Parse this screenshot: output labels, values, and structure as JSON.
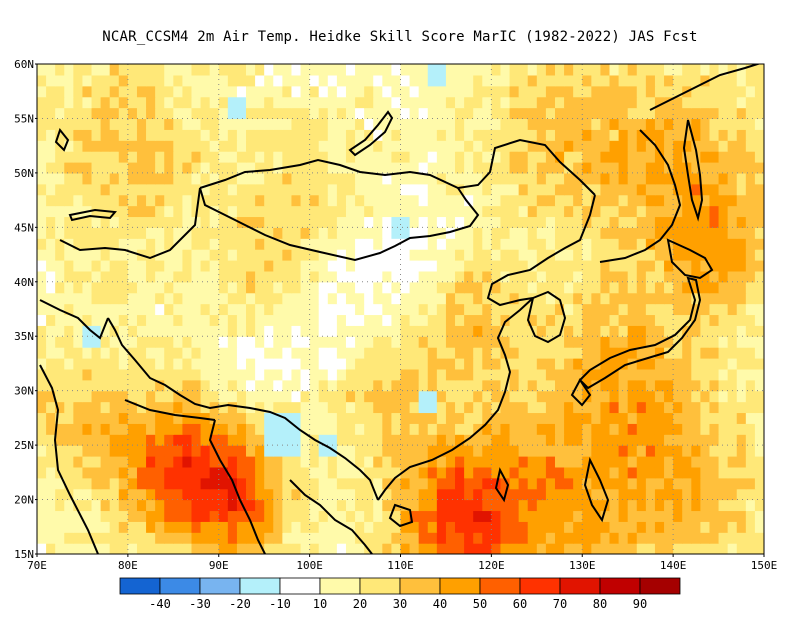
{
  "title": "NCAR_CCSM4  2m Air Temp. Heidke Skill Score MarIC (1982-2022) JAS Fcst",
  "lat_labels": [
    "60N",
    "55N",
    "50N",
    "45N",
    "40N",
    "35N",
    "30N",
    "25N",
    "20N",
    "15N"
  ],
  "lon_labels": [
    "70E",
    "80E",
    "90E",
    "100E",
    "110E",
    "120E",
    "130E",
    "140E",
    "150E"
  ],
  "colorbar": {
    "colors": [
      "#1464d2",
      "#3c8ae6",
      "#78b4f0",
      "#b4f0fa",
      "#ffffff",
      "#fffaaa",
      "#ffe878",
      "#ffc03c",
      "#ffa000",
      "#ff6000",
      "#ff3200",
      "#e11400",
      "#c00000",
      "#a50000"
    ],
    "labels": [
      "-40",
      "-30",
      "-20",
      "-10",
      "10",
      "20",
      "30",
      "40",
      "50",
      "60",
      "70",
      "80",
      "90"
    ]
  },
  "field": {
    "description_levels": [
      "white",
      "light-yellow",
      "yellow",
      "light-orange",
      "orange"
    ],
    "blobs": [
      {
        "lon": 85,
        "lat": 23,
        "r": 7,
        "v": 50
      },
      {
        "lon": 92,
        "lat": 20,
        "r": 6,
        "v": 45
      },
      {
        "lon": 116,
        "lat": 18,
        "r": 7,
        "v": 48
      },
      {
        "lon": 125,
        "lat": 20,
        "r": 10,
        "v": 32
      },
      {
        "lon": 140,
        "lat": 22,
        "r": 10,
        "v": 28
      },
      {
        "lon": 134,
        "lat": 33,
        "r": 8,
        "v": 24
      },
      {
        "lon": 142,
        "lat": 50,
        "r": 9,
        "v": 30
      },
      {
        "lon": 128,
        "lat": 53,
        "r": 9,
        "v": 24
      },
      {
        "lon": 80,
        "lat": 52,
        "r": 10,
        "v": 22
      },
      {
        "lon": 100,
        "lat": 46,
        "r": 8,
        "v": 18
      },
      {
        "lon": 108,
        "lat": 31,
        "r": 7,
        "v": 22
      },
      {
        "lon": 118,
        "lat": 37,
        "r": 6,
        "v": 26
      },
      {
        "lon": 74,
        "lat": 28,
        "r": 6,
        "v": 22
      },
      {
        "lon": 95,
        "lat": 40,
        "r": 6,
        "v": 20
      },
      {
        "lon": 145,
        "lat": 42,
        "r": 6,
        "v": 22
      }
    ],
    "cold_spots": [
      {
        "lon": 97,
        "lat": 26,
        "r": 2.2,
        "v": -12
      },
      {
        "lon": 102,
        "lat": 25,
        "r": 1.2,
        "v": -12
      },
      {
        "lon": 110,
        "lat": 45,
        "r": 0.9,
        "v": -12
      },
      {
        "lon": 113,
        "lat": 29,
        "r": 1.0,
        "v": -12
      },
      {
        "lon": 76,
        "lat": 35,
        "r": 1.0,
        "v": -12
      },
      {
        "lon": 114,
        "lat": 59.5,
        "r": 1.5,
        "v": -12
      },
      {
        "lon": 92,
        "lat": 56,
        "r": 1.2,
        "v": -12
      }
    ]
  }
}
